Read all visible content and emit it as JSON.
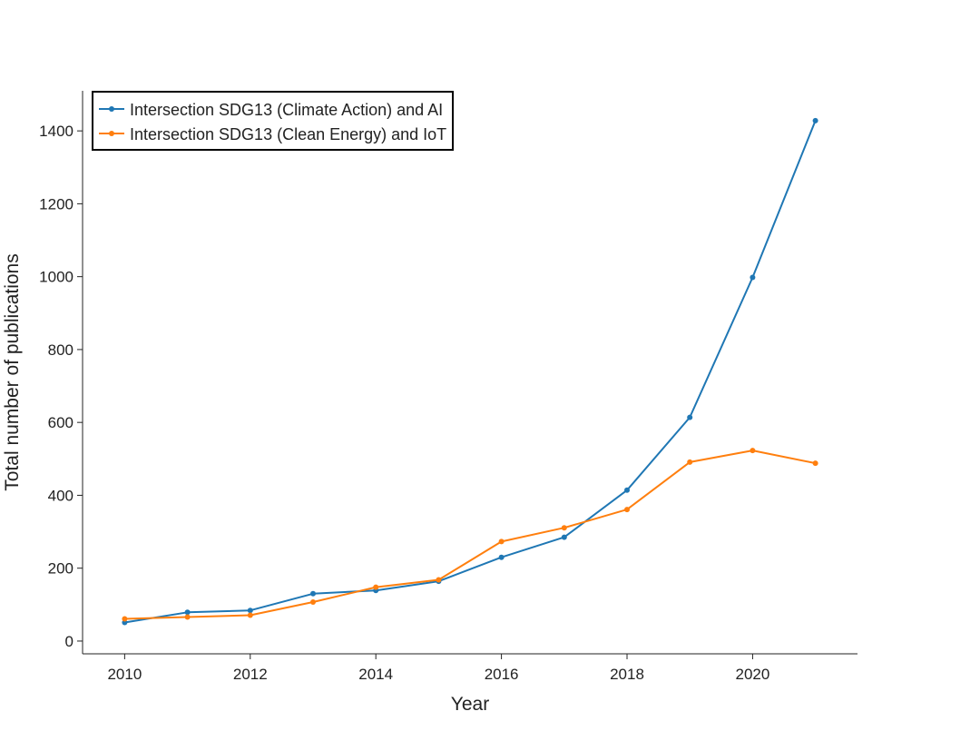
{
  "chart_data": {
    "type": "line",
    "title": "",
    "xlabel": "Year",
    "ylabel": "Total number of publications",
    "x": [
      2010,
      2011,
      2012,
      2013,
      2014,
      2015,
      2016,
      2017,
      2018,
      2019,
      2020,
      2021
    ],
    "xlim": [
      2009.33,
      2021.67
    ],
    "ylim": [
      -35,
      1510
    ],
    "xticks": [
      2010,
      2012,
      2014,
      2016,
      2018,
      2020
    ],
    "yticks": [
      0,
      200,
      400,
      600,
      800,
      1000,
      1200,
      1400
    ],
    "grid": false,
    "legend_position": "top-left",
    "series": [
      {
        "name": "Intersection SDG13 (Climate Action) and AI",
        "color": "#1f77b4",
        "values": [
          51,
          79,
          84,
          130,
          139,
          164,
          230,
          285,
          414,
          614,
          998,
          1428
        ]
      },
      {
        "name": "Intersection SDG13 (Clean Energy) and IoT",
        "color": "#ff7f0e",
        "values": [
          61,
          66,
          71,
          107,
          148,
          168,
          273,
          311,
          361,
          491,
          523,
          488
        ]
      }
    ]
  }
}
